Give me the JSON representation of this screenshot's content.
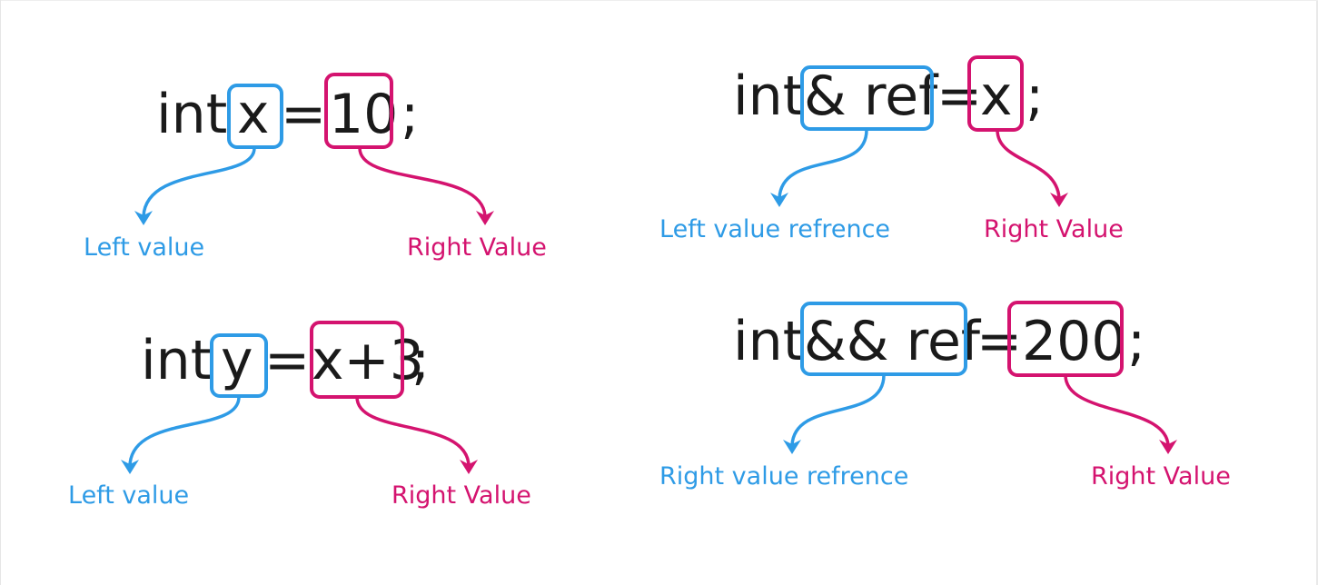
{
  "colors": {
    "left": "#2e9be6",
    "right": "#d4136f",
    "code": "#1a1a1a"
  },
  "examples": {
    "ex1": {
      "type": "int",
      "lhs": "x",
      "eq": "=",
      "rhs": "10",
      "semi": ";",
      "left_label": "Left value",
      "right_label": "Right Value"
    },
    "ex2": {
      "type": "int",
      "lhs": "y",
      "eq": "=",
      "rhs": "x+3",
      "semi": ";",
      "left_label": "Left value",
      "right_label": "Right Value"
    },
    "ex3": {
      "type": "int",
      "lhs": "& ref",
      "eq": "=",
      "rhs": "x",
      "semi": ";",
      "left_label": "Left value refrence",
      "right_label": "Right Value"
    },
    "ex4": {
      "type": "int",
      "lhs": "&& ref",
      "eq": "=",
      "rhs": "200",
      "semi": ";",
      "left_label": "Right value refrence",
      "right_label": "Right Value"
    }
  }
}
